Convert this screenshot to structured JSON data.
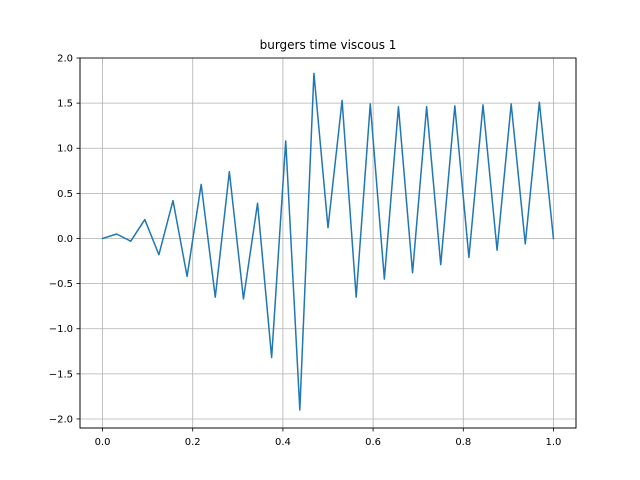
{
  "chart_data": {
    "type": "line",
    "title": "burgers time viscous 1",
    "xlabel": "",
    "ylabel": "",
    "xlim": [
      -0.05,
      1.05
    ],
    "ylim": [
      -2.1,
      2.0
    ],
    "xticks": [
      0.0,
      0.2,
      0.4,
      0.6,
      0.8,
      1.0
    ],
    "xtick_labels": [
      "0.0",
      "0.2",
      "0.4",
      "0.6",
      "0.8",
      "1.0"
    ],
    "yticks": [
      -2.0,
      -1.5,
      -1.0,
      -0.5,
      0.0,
      0.5,
      1.0,
      1.5,
      2.0
    ],
    "ytick_labels": [
      "−2.0",
      "−1.5",
      "−1.0",
      "−0.5",
      "0.0",
      "0.5",
      "1.0",
      "1.5",
      "2.0"
    ],
    "grid": true,
    "line_color": "#1f77b4",
    "series": [
      {
        "x": [
          0.0,
          0.03125,
          0.0625,
          0.09375,
          0.125,
          0.15625,
          0.1875,
          0.21875,
          0.25,
          0.28125,
          0.3125,
          0.34375,
          0.375,
          0.40625,
          0.4375,
          0.46875,
          0.5,
          0.53125,
          0.5625,
          0.59375,
          0.625,
          0.65625,
          0.6875,
          0.71875,
          0.75,
          0.78125,
          0.8125,
          0.84375,
          0.875,
          0.90625,
          0.9375,
          0.96875,
          1.0
        ],
        "values": [
          0.0,
          0.05,
          -0.03,
          0.21,
          -0.18,
          0.42,
          -0.42,
          0.6,
          -0.65,
          0.74,
          -0.67,
          0.39,
          -1.32,
          1.08,
          -1.9,
          1.83,
          0.12,
          1.53,
          -0.65,
          1.49,
          -0.45,
          1.46,
          -0.38,
          1.46,
          -0.29,
          1.47,
          -0.21,
          1.48,
          -0.13,
          1.49,
          -0.06,
          1.51,
          0.0
        ]
      }
    ]
  }
}
